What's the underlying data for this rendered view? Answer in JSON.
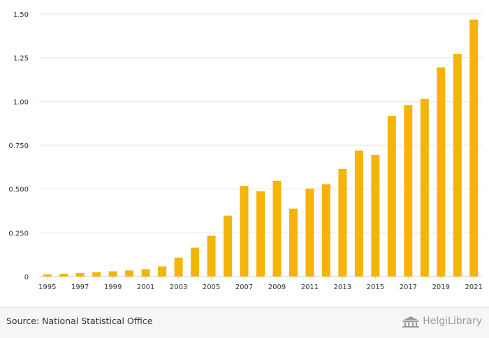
{
  "chart_data": {
    "type": "bar",
    "title": "",
    "xlabel": "",
    "ylabel": "",
    "ylim": [
      0,
      1.5
    ],
    "grid": true,
    "bar_color": "#f5b40a",
    "grid_color": "#e6e6e6",
    "y_ticks": [
      {
        "value": 0,
        "label": "0"
      },
      {
        "value": 0.25,
        "label": "0.250"
      },
      {
        "value": 0.5,
        "label": "0.500"
      },
      {
        "value": 0.75,
        "label": "0.750"
      },
      {
        "value": 1.0,
        "label": "1.00"
      },
      {
        "value": 1.25,
        "label": "1.25"
      },
      {
        "value": 1.5,
        "label": "1.50"
      }
    ],
    "categories": [
      "1995",
      "1996",
      "1997",
      "1998",
      "1999",
      "2000",
      "2001",
      "2002",
      "2003",
      "2004",
      "2005",
      "2006",
      "2007",
      "2008",
      "2009",
      "2010",
      "2011",
      "2012",
      "2013",
      "2014",
      "2015",
      "2016",
      "2017",
      "2018",
      "2019",
      "2020",
      "2021"
    ],
    "x_tick_labels": [
      "1995",
      "",
      "1997",
      "",
      "1999",
      "",
      "2001",
      "",
      "2003",
      "",
      "2005",
      "",
      "2007",
      "",
      "2009",
      "",
      "2011",
      "",
      "2013",
      "",
      "2015",
      "",
      "2017",
      "",
      "2019",
      "",
      "2021"
    ],
    "values": [
      0.012,
      0.016,
      0.02,
      0.025,
      0.03,
      0.035,
      0.042,
      0.058,
      0.108,
      0.165,
      0.233,
      0.348,
      0.518,
      0.488,
      0.547,
      0.388,
      0.503,
      0.527,
      0.615,
      0.72,
      0.695,
      0.918,
      0.98,
      1.015,
      1.195,
      1.272,
      1.468
    ]
  },
  "footer": {
    "source": "Source: National Statistical Office",
    "brand_name": "HelgiLibrary",
    "brand_icon": "library-building-icon"
  }
}
